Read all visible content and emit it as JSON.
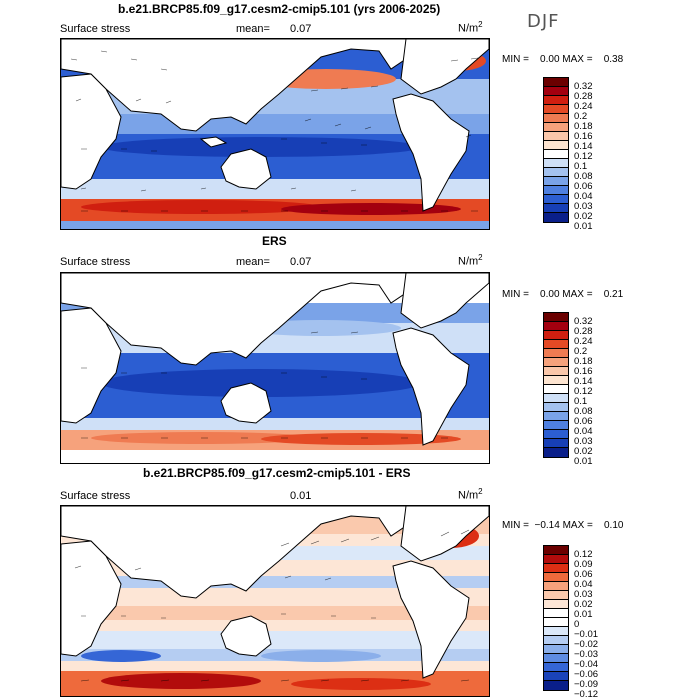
{
  "season": "DJF",
  "panels": [
    {
      "title": "b.e21.BRCP85.f09_g17.cesm2-cmip5.101 (yrs 2006-2025)",
      "label": "Surface stress",
      "mean_label": "mean=",
      "mean": "0.07",
      "units": "N/m",
      "units_sup": "2",
      "minmax": "MIN =    0.00 MAX =    0.38",
      "colorbar_labels": [
        "0.32",
        "0.28",
        "0.24",
        "0.2",
        "0.18",
        "0.16",
        "0.14",
        "0.12",
        "0.1",
        "0.08",
        "0.06",
        "0.04",
        "0.03",
        "0.02",
        "0.01"
      ]
    },
    {
      "title": "ERS",
      "label": "Surface stress",
      "mean_label": "mean=",
      "mean": "0.07",
      "units": "N/m",
      "units_sup": "2",
      "minmax": "MIN =    0.00 MAX =    0.21",
      "colorbar_labels": [
        "0.32",
        "0.28",
        "0.24",
        "0.2",
        "0.18",
        "0.16",
        "0.14",
        "0.12",
        "0.1",
        "0.08",
        "0.06",
        "0.04",
        "0.03",
        "0.02",
        "0.01"
      ]
    },
    {
      "title": "b.e21.BRCP85.f09_g17.cesm2-cmip5.101 - ERS",
      "label": "Surface stress",
      "mean_label": "",
      "mean": "0.01",
      "units": "N/m",
      "units_sup": "2",
      "minmax": "MIN =  −0.14 MAX =    0.10",
      "colorbar_labels": [
        "0.12",
        "0.09",
        "0.06",
        "0.04",
        "0.03",
        "0.02",
        "0.01",
        "0",
        "−0.01",
        "−0.02",
        "−0.03",
        "−0.04",
        "−0.06",
        "−0.09",
        "−0.12"
      ]
    }
  ],
  "colors": {
    "seq": [
      "#6b0000",
      "#a3000f",
      "#d01f10",
      "#e44a25",
      "#ef7b52",
      "#f6a27c",
      "#fac7aa",
      "#fde4d0",
      "#ffffff",
      "#cfe0f7",
      "#a4c2ef",
      "#7aa3e8",
      "#4f80e0",
      "#2c5ed2",
      "#173fb6",
      "#0a1f8a"
    ],
    "diff": [
      "#6b0000",
      "#b20c0c",
      "#dc2f14",
      "#ee6a3c",
      "#f6a27c",
      "#fac9ad",
      "#fde6d6",
      "#ffffff",
      "#ffffff",
      "#dbe8f9",
      "#b5cdf2",
      "#8bafea",
      "#5e8ce2",
      "#3566d6",
      "#1a43b9",
      "#0a1f8a"
    ]
  }
}
